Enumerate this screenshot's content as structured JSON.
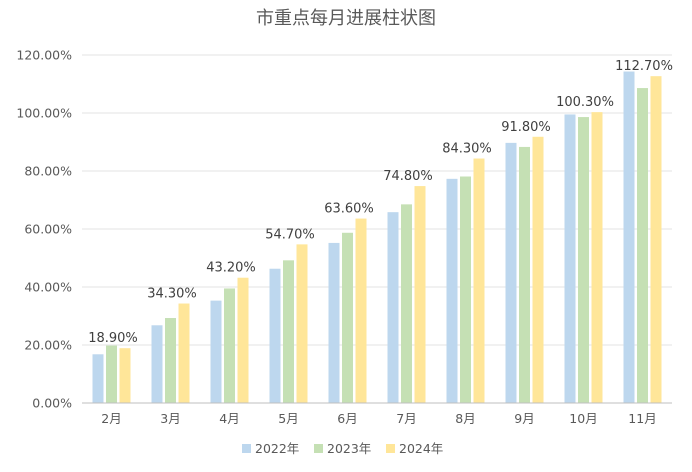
{
  "chart_data": {
    "type": "bar",
    "title": "市重点每月进展柱状图",
    "xlabel": "",
    "ylabel": "",
    "categories": [
      "2月",
      "3月",
      "4月",
      "5月",
      "6月",
      "7月",
      "8月",
      "9月",
      "10月",
      "11月"
    ],
    "series": [
      {
        "name": "2022年",
        "color": "#bdd7ee",
        "values": [
          16.8,
          26.8,
          35.3,
          46.3,
          55.2,
          65.8,
          77.3,
          89.7,
          99.5,
          114.3
        ]
      },
      {
        "name": "2023年",
        "color": "#c5e0b4",
        "values": [
          19.8,
          29.3,
          39.5,
          49.2,
          58.7,
          68.5,
          78.1,
          88.3,
          98.6,
          108.6
        ]
      },
      {
        "name": "2024年",
        "color": "#ffe699",
        "values": [
          18.9,
          34.3,
          43.2,
          54.7,
          63.6,
          74.8,
          84.3,
          91.8,
          100.3,
          112.7
        ]
      }
    ],
    "data_labels": {
      "series": "2024年",
      "values": [
        "18.90%",
        "34.30%",
        "43.20%",
        "54.70%",
        "63.60%",
        "74.80%",
        "84.30%",
        "91.80%",
        "100.30%",
        "112.70%"
      ]
    },
    "y_ticks": [
      "0.00%",
      "20.00%",
      "40.00%",
      "60.00%",
      "80.00%",
      "100.00%",
      "120.00%"
    ],
    "ylim": [
      0,
      120
    ],
    "grid": true,
    "legend_position": "bottom"
  }
}
